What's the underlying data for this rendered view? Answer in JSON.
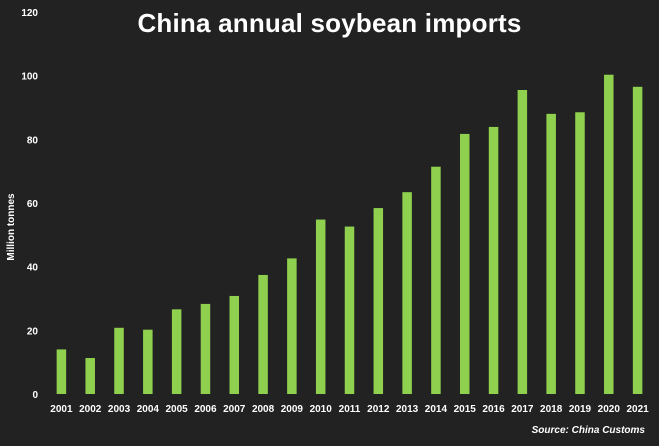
{
  "chart_data": {
    "type": "bar",
    "title": "China annual soybean imports",
    "xlabel": "",
    "ylabel": "Million tonnes",
    "source": "Source: China Customs",
    "ylim": [
      0,
      120
    ],
    "yticks": [
      0,
      20,
      40,
      60,
      80,
      100,
      120
    ],
    "grid": false,
    "legend": "none",
    "bar_color": "#8fd14f",
    "background": "#222222",
    "categories": [
      "2001",
      "2002",
      "2003",
      "2004",
      "2005",
      "2006",
      "2007",
      "2008",
      "2009",
      "2010",
      "2011",
      "2012",
      "2013",
      "2014",
      "2015",
      "2016",
      "2017",
      "2018",
      "2019",
      "2020",
      "2021"
    ],
    "values": [
      14,
      11.3,
      20.8,
      20.2,
      26.6,
      28.3,
      30.8,
      37.4,
      42.6,
      54.8,
      52.6,
      58.4,
      63.4,
      71.4,
      81.7,
      83.9,
      95.5,
      88,
      88.5,
      100.3,
      96.5
    ]
  }
}
